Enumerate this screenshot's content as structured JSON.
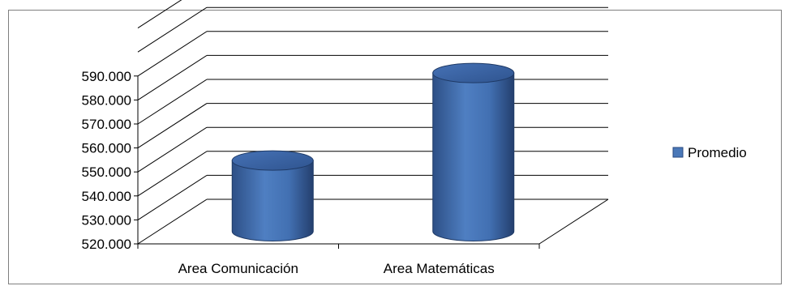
{
  "chart_data": {
    "type": "bar",
    "style": "3d-cylinder",
    "categories": [
      "Area Comunicación",
      "Area Matemáticas"
    ],
    "series": [
      {
        "name": "Promedio",
        "values": [
          549.5,
          586
        ],
        "color": "#4a78b8"
      }
    ],
    "ylim": [
      520,
      590
    ],
    "yticks": [
      520,
      530,
      540,
      550,
      560,
      570,
      580,
      590
    ],
    "ytick_labels": [
      "520.000",
      "530.000",
      "540.000",
      "550.000",
      "560.000",
      "570.000",
      "580.000",
      "590.000"
    ],
    "grid": true,
    "legend_position": "right"
  }
}
